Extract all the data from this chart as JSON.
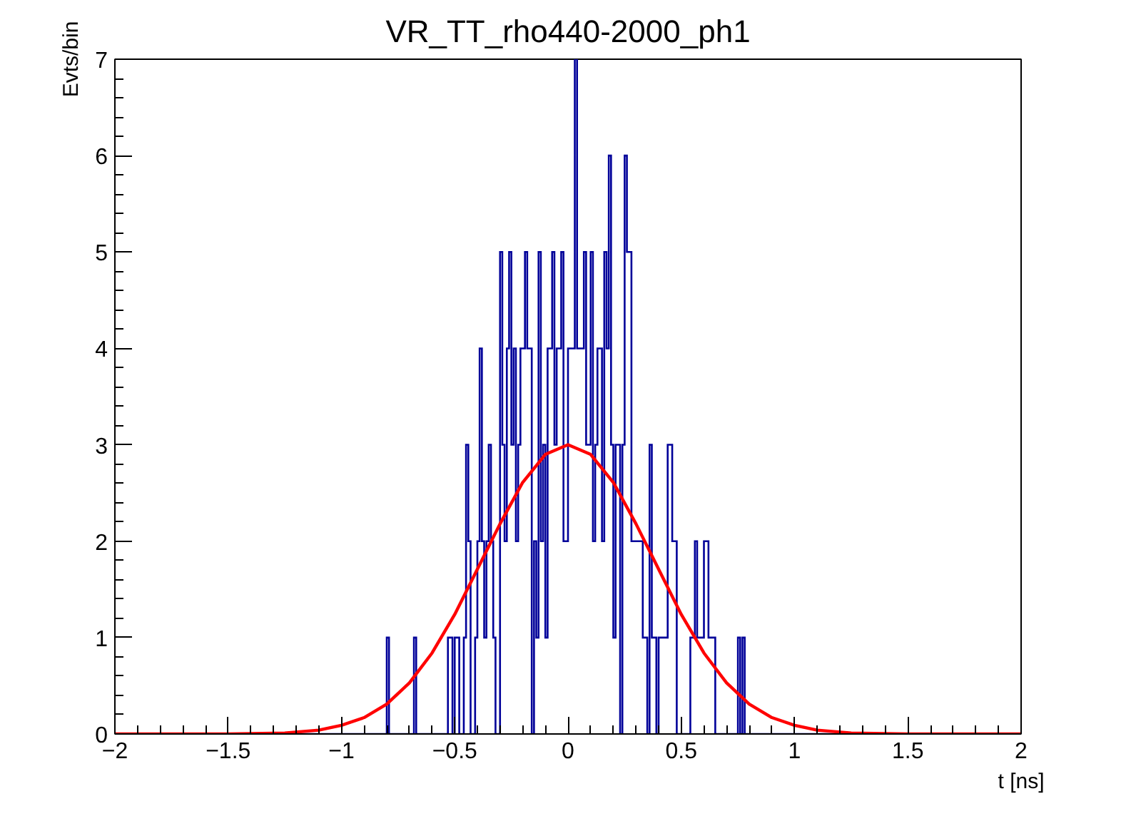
{
  "chart_data": {
    "type": "histogram",
    "title": "VR_TT_rho440-2000_ph1",
    "xlabel": "t [ns]",
    "ylabel": "Evts/bin",
    "bins": [
      -2,
      -0.8,
      -0.79,
      -0.78,
      -0.77,
      -0.76,
      -0.75,
      -0.74,
      -0.73,
      -0.72,
      -0.71,
      -0.7,
      -0.69,
      -0.68,
      -0.67,
      -0.66,
      -0.65,
      -0.64,
      -0.63,
      -0.62,
      -0.61,
      -0.6,
      -0.59,
      -0.58,
      -0.57,
      -0.56,
      -0.55,
      -0.54,
      -0.53,
      -0.52,
      -0.51,
      -0.5,
      -0.49,
      -0.48,
      -0.47,
      -0.46,
      -0.45,
      -0.44,
      -0.43,
      -0.42,
      -0.41,
      -0.4,
      -0.39,
      -0.38,
      -0.37,
      -0.36,
      -0.35,
      -0.34,
      -0.33,
      -0.32,
      -0.31,
      -0.3,
      -0.29,
      -0.28,
      -0.27,
      -0.26,
      -0.25,
      -0.24,
      -0.23,
      -0.22,
      -0.21,
      -0.2,
      -0.19,
      -0.18,
      -0.17,
      -0.16,
      -0.15,
      -0.14,
      -0.13,
      -0.12,
      -0.11,
      -0.1,
      -0.09,
      -0.08,
      -0.07,
      -0.06,
      -0.05,
      -0.04,
      -0.03,
      -0.02,
      -0.01,
      0,
      0.01,
      0.02,
      0.03,
      0.04,
      0.05,
      0.06,
      0.07,
      0.08,
      0.09,
      0.1,
      0.11,
      0.12,
      0.13,
      0.14,
      0.15,
      0.16,
      0.17,
      0.18,
      0.19,
      0.2,
      0.21,
      0.22,
      0.23,
      0.24,
      0.25,
      0.26,
      0.27,
      0.28,
      0.29,
      0.3,
      0.31,
      0.32,
      0.33,
      0.34,
      0.35,
      0.36,
      0.37,
      0.38,
      0.39,
      0.4,
      0.41,
      0.42,
      0.43,
      0.44,
      0.45,
      0.46,
      0.47,
      0.48,
      0.49,
      0.5,
      0.51,
      0.52,
      0.53,
      0.54,
      0.55,
      0.56,
      0.57,
      0.58,
      0.59,
      0.6,
      0.61,
      0.62,
      0.63,
      0.64,
      0.65,
      0.66,
      0.67,
      0.68,
      0.69,
      0.7,
      0.71,
      0.72,
      0.73,
      0.74,
      0.75,
      0.76,
      0.77,
      0.78,
      0.79,
      0.8,
      2
    ],
    "series": [
      {
        "color": "#000099",
        "values": [
          0,
          1,
          0,
          0,
          0,
          0,
          0,
          0,
          0,
          0,
          0,
          0,
          0,
          1,
          0,
          0,
          0,
          0,
          0,
          0,
          0,
          0,
          0,
          0,
          0,
          0,
          0,
          0,
          1,
          1,
          0,
          1,
          1,
          0,
          0,
          1,
          3,
          2,
          0,
          0,
          1,
          2,
          4,
          2,
          1,
          2,
          3,
          2,
          1,
          0,
          0,
          5,
          3,
          2,
          4,
          5,
          3,
          4,
          2,
          3,
          4,
          4,
          5,
          4,
          4,
          0,
          2,
          1,
          5,
          2,
          3,
          1,
          4,
          4,
          5,
          3,
          4,
          4,
          5,
          2,
          2,
          4,
          4,
          4,
          7,
          4,
          4,
          4,
          5,
          3,
          3,
          5,
          2,
          3,
          4,
          4,
          2,
          5,
          4,
          6,
          3,
          1,
          3,
          3,
          0,
          3,
          6,
          5,
          5,
          2,
          2,
          2,
          2,
          2,
          1,
          1,
          0,
          3,
          1,
          1,
          0,
          1,
          1,
          1,
          1,
          3,
          3,
          2,
          2,
          0,
          0,
          0,
          0,
          0,
          0,
          1,
          1,
          2,
          1,
          1,
          1,
          2,
          2,
          1,
          1,
          1,
          0,
          0,
          0,
          0,
          0,
          0,
          0,
          0,
          0,
          0,
          1,
          0,
          1,
          0,
          0,
          0
        ]
      },
      {
        "type": "line",
        "color": "#ff0000",
        "x": [
          -2,
          -1.5,
          -1.25,
          -1.1,
          -1,
          -0.9,
          -0.8,
          -0.7,
          -0.6,
          -0.5,
          -0.4,
          -0.3,
          -0.2,
          -0.1,
          0,
          0.1,
          0.2,
          0.3,
          0.4,
          0.5,
          0.6,
          0.7,
          0.8,
          0.9,
          1,
          1.1,
          1.25,
          1.5,
          2
        ],
        "values": [
          0,
          0,
          0.01,
          0.04,
          0.09,
          0.17,
          0.31,
          0.53,
          0.84,
          1.24,
          1.71,
          2.18,
          2.61,
          2.9,
          3,
          2.9,
          2.61,
          2.18,
          1.71,
          1.24,
          0.84,
          0.53,
          0.31,
          0.17,
          0.09,
          0.04,
          0.01,
          0,
          0
        ]
      }
    ],
    "xlim": [
      -2,
      2
    ],
    "xticks": [
      {
        "value": -2,
        "label": "−2"
      },
      {
        "value": -1.5,
        "label": "−1.5"
      },
      {
        "value": -1,
        "label": "−1"
      },
      {
        "value": -0.5,
        "label": "−0.5"
      },
      0,
      0.5,
      1,
      1.5,
      2
    ],
    "ylim": [
      0,
      7
    ],
    "yticks": [
      0,
      1,
      2,
      3,
      4,
      5,
      6,
      7
    ],
    "grid": false
  }
}
